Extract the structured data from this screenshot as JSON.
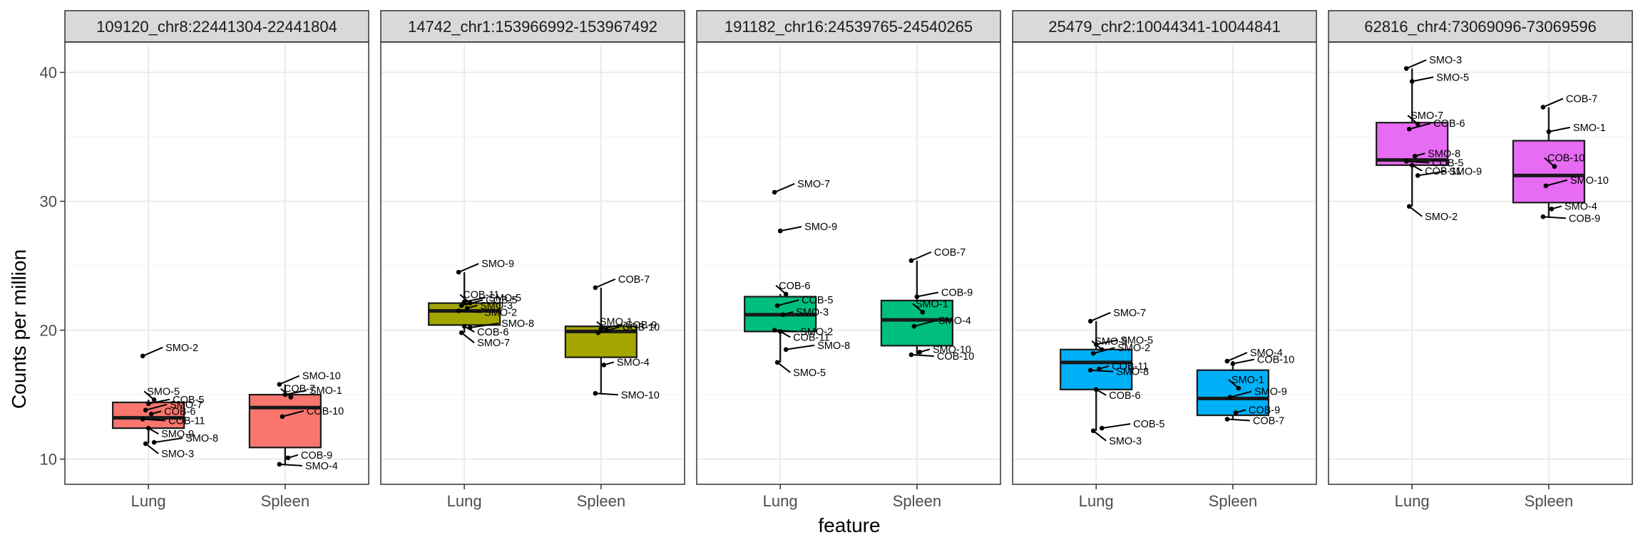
{
  "chart_data": {
    "type": "boxplot",
    "xlabel": "feature",
    "ylabel": "Counts per million",
    "ylim": [
      8,
      42.5
    ],
    "y_ticks": [
      "10",
      "20",
      "30",
      "40"
    ],
    "categories": [
      "Lung",
      "Spleen"
    ],
    "grid": "on",
    "legend": "none",
    "panels": [
      {
        "title": "109120_chr8:22441304-22441804",
        "color": "#F8766D",
        "groups": [
          {
            "name": "Lung",
            "box": {
              "q1": 12.4,
              "median": 13.2,
              "q3": 14.4,
              "whisker_low": 11.2,
              "whisker_high": 14.6
            },
            "points": [
              {
                "label": "SMO-2",
                "value": 18.0
              },
              {
                "label": "COB-5",
                "value": 14.3
              },
              {
                "label": "SMO-5",
                "value": 14.6
              },
              {
                "label": "SMO-7",
                "value": 13.8
              },
              {
                "label": "COB-6",
                "value": 13.5
              },
              {
                "label": "COB-11",
                "value": 13.1
              },
              {
                "label": "SMO-9",
                "value": 12.4
              },
              {
                "label": "SMO-8",
                "value": 11.3
              },
              {
                "label": "SMO-3",
                "value": 11.2
              }
            ]
          },
          {
            "name": "Spleen",
            "box": {
              "q1": 10.9,
              "median": 14.0,
              "q3": 15.0,
              "whisker_low": 9.6,
              "whisker_high": 15.8
            },
            "points": [
              {
                "label": "SMO-10",
                "value": 15.8
              },
              {
                "label": "SMO-1",
                "value": 15.0
              },
              {
                "label": "COB-7",
                "value": 14.8
              },
              {
                "label": "COB-10",
                "value": 13.3
              },
              {
                "label": "COB-9",
                "value": 10.1
              },
              {
                "label": "SMO-4",
                "value": 9.6
              }
            ]
          }
        ]
      },
      {
        "title": "14742_chr1:153966992-153967492",
        "color": "#A3A500",
        "groups": [
          {
            "name": "Lung",
            "box": {
              "q1": 20.4,
              "median": 21.5,
              "q3": 22.1,
              "whisker_low": 19.8,
              "whisker_high": 24.5
            },
            "points": [
              {
                "label": "SMO-9",
                "value": 24.5
              },
              {
                "label": "SMO-5",
                "value": 22.2
              },
              {
                "label": "COB-11",
                "value": 22.1
              },
              {
                "label": "COB-5",
                "value": 21.9
              },
              {
                "label": "SMO-3",
                "value": 21.7
              },
              {
                "label": "SMO-2",
                "value": 21.5
              },
              {
                "label": "COB-6",
                "value": 20.3
              },
              {
                "label": "SMO-8",
                "value": 20.2
              },
              {
                "label": "SMO-7",
                "value": 19.8
              }
            ]
          },
          {
            "name": "Spleen",
            "box": {
              "q1": 17.9,
              "median": 19.9,
              "q3": 20.3,
              "whisker_low": 15.1,
              "whisker_high": 23.3
            },
            "points": [
              {
                "label": "COB-7",
                "value": 23.3
              },
              {
                "label": "COB-9",
                "value": 20.1
              },
              {
                "label": "SMO-1",
                "value": 20.0
              },
              {
                "label": "COB-10",
                "value": 19.8
              },
              {
                "label": "SMO-4",
                "value": 17.3
              },
              {
                "label": "SMO-10",
                "value": 15.1
              }
            ]
          }
        ]
      },
      {
        "title": "191182_chr16:24539765-24540265",
        "color": "#00BF7D",
        "groups": [
          {
            "name": "Lung",
            "box": {
              "q1": 19.9,
              "median": 21.2,
              "q3": 22.6,
              "whisker_low": 17.5,
              "whisker_high": 22.8
            },
            "points": [
              {
                "label": "SMO-7",
                "value": 30.7
              },
              {
                "label": "SMO-9",
                "value": 27.7
              },
              {
                "label": "COB-6",
                "value": 22.8
              },
              {
                "label": "COB-5",
                "value": 21.9
              },
              {
                "label": "SMO-3",
                "value": 21.2
              },
              {
                "label": "SMO-2",
                "value": 20.0
              },
              {
                "label": "COB-11",
                "value": 19.9
              },
              {
                "label": "SMO-8",
                "value": 18.5
              },
              {
                "label": "SMO-5",
                "value": 17.5
              }
            ]
          },
          {
            "name": "Spleen",
            "box": {
              "q1": 18.8,
              "median": 20.8,
              "q3": 22.3,
              "whisker_low": 18.1,
              "whisker_high": 25.4
            },
            "points": [
              {
                "label": "COB-7",
                "value": 25.4
              },
              {
                "label": "COB-9",
                "value": 22.6
              },
              {
                "label": "SMO-1",
                "value": 21.4
              },
              {
                "label": "SMO-4",
                "value": 20.3
              },
              {
                "label": "SMO-10",
                "value": 18.3
              },
              {
                "label": "COB-10",
                "value": 18.1
              }
            ]
          }
        ]
      },
      {
        "title": "25479_chr2:10044341-10044841",
        "color": "#00B0F6",
        "groups": [
          {
            "name": "Lung",
            "box": {
              "q1": 15.4,
              "median": 17.5,
              "q3": 18.5,
              "whisker_low": 12.2,
              "whisker_high": 20.7
            },
            "points": [
              {
                "label": "SMO-7",
                "value": 20.7
              },
              {
                "label": "SMO-5",
                "value": 18.9
              },
              {
                "label": "SMO-9",
                "value": 18.5
              },
              {
                "label": "SMO-2",
                "value": 18.2
              },
              {
                "label": "COB-11",
                "value": 17.0
              },
              {
                "label": "SMO-8",
                "value": 16.9
              },
              {
                "label": "COB-6",
                "value": 15.4
              },
              {
                "label": "COB-5",
                "value": 12.4
              },
              {
                "label": "SMO-3",
                "value": 12.2
              }
            ]
          },
          {
            "name": "Spleen",
            "box": {
              "q1": 13.4,
              "median": 14.7,
              "q3": 16.9,
              "whisker_low": 13.1,
              "whisker_high": 17.6
            },
            "points": [
              {
                "label": "SMO-4",
                "value": 17.6
              },
              {
                "label": "COB-10",
                "value": 17.4
              },
              {
                "label": "SMO-1",
                "value": 15.5
              },
              {
                "label": "SMO-9",
                "value": 14.8
              },
              {
                "label": "COB-9",
                "value": 13.6
              },
              {
                "label": "COB-7",
                "value": 13.1
              }
            ]
          }
        ]
      },
      {
        "title": "62816_chr4:73069096-73069596",
        "color": "#E76BF3",
        "groups": [
          {
            "name": "Lung",
            "box": {
              "q1": 32.8,
              "median": 33.2,
              "q3": 36.1,
              "whisker_low": 29.6,
              "whisker_high": 40.3
            },
            "points": [
              {
                "label": "SMO-3",
                "value": 40.3
              },
              {
                "label": "SMO-5",
                "value": 39.3
              },
              {
                "label": "SMO-7",
                "value": 36.0
              },
              {
                "label": "COB-6",
                "value": 35.6
              },
              {
                "label": "SMO-8",
                "value": 33.5
              },
              {
                "label": "COB-5",
                "value": 33.1
              },
              {
                "label": "COB-11",
                "value": 32.8
              },
              {
                "label": "SMO-9",
                "value": 32.0
              },
              {
                "label": "SMO-2",
                "value": 29.6
              }
            ]
          },
          {
            "name": "Spleen",
            "box": {
              "q1": 29.9,
              "median": 32.0,
              "q3": 34.7,
              "whisker_low": 28.8,
              "whisker_high": 37.3
            },
            "points": [
              {
                "label": "COB-7",
                "value": 37.3
              },
              {
                "label": "SMO-1",
                "value": 35.4
              },
              {
                "label": "COB-10",
                "value": 32.7
              },
              {
                "label": "SMO-10",
                "value": 31.2
              },
              {
                "label": "SMO-4",
                "value": 29.4
              },
              {
                "label": "COB-9",
                "value": 28.8
              }
            ]
          }
        ]
      }
    ]
  }
}
